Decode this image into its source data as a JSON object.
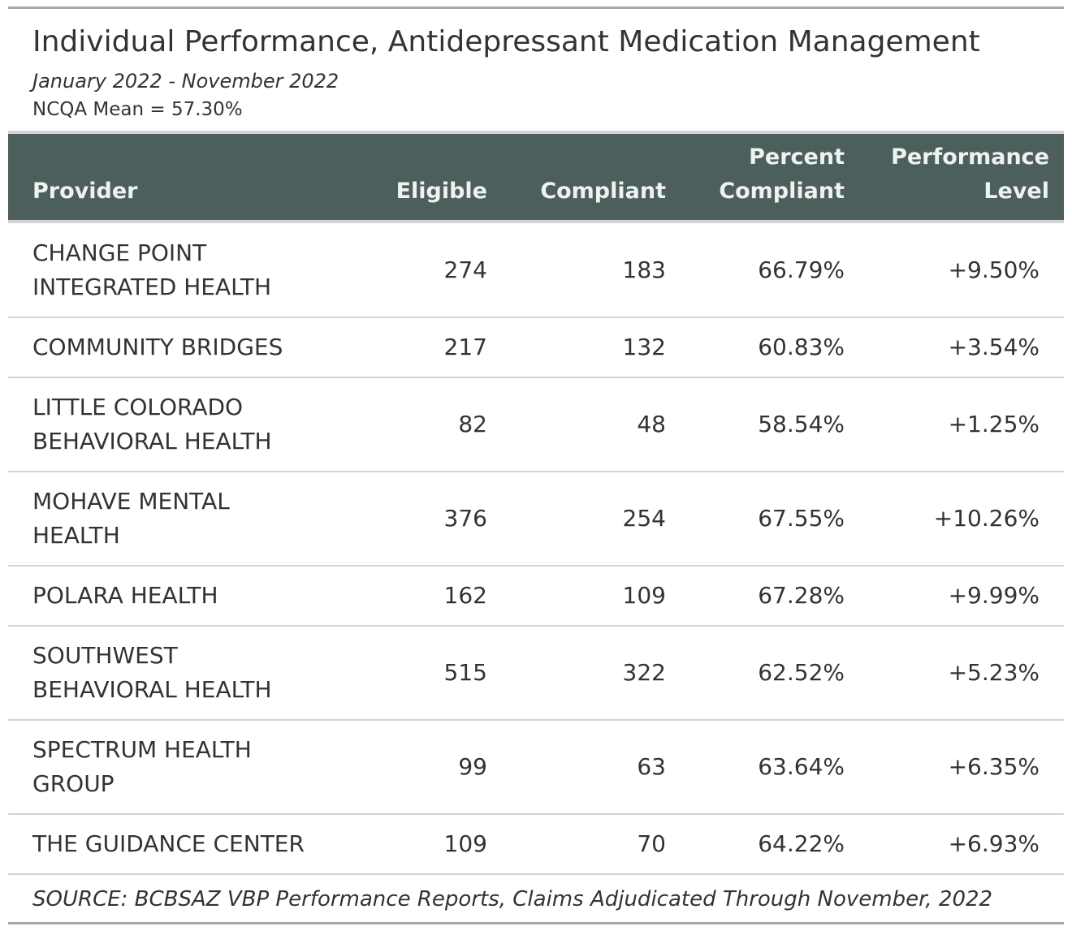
{
  "chart_data": {
    "type": "table",
    "title": "Individual Performance, Antidepressant Medication Management",
    "subtitle": "January 2022 - November 2022",
    "note": "NCQA Mean = 57.30%",
    "columns": {
      "provider": "Provider",
      "eligible": "Eligible",
      "compliant": "Compliant",
      "percent_line1": "Percent",
      "percent_line2": "Compliant",
      "performance_line1": "Performance",
      "performance_line2": "Level"
    },
    "rows": [
      {
        "provider_line1": "CHANGE POINT",
        "provider_line2": "INTEGRATED HEALTH",
        "eligible": "274",
        "compliant": "183",
        "percent": "66.79%",
        "performance": "+9.50%"
      },
      {
        "provider_line1": "COMMUNITY BRIDGES",
        "provider_line2": "",
        "eligible": "217",
        "compliant": "132",
        "percent": "60.83%",
        "performance": "+3.54%"
      },
      {
        "provider_line1": "LITTLE COLORADO",
        "provider_line2": "BEHAVIORAL HEALTH",
        "eligible": "82",
        "compliant": "48",
        "percent": "58.54%",
        "performance": "+1.25%"
      },
      {
        "provider_line1": "MOHAVE MENTAL",
        "provider_line2": "HEALTH",
        "eligible": "376",
        "compliant": "254",
        "percent": "67.55%",
        "performance": "+10.26%"
      },
      {
        "provider_line1": "POLARA HEALTH",
        "provider_line2": "",
        "eligible": "162",
        "compliant": "109",
        "percent": "67.28%",
        "performance": "+9.99%"
      },
      {
        "provider_line1": "SOUTHWEST",
        "provider_line2": "BEHAVIORAL HEALTH",
        "eligible": "515",
        "compliant": "322",
        "percent": "62.52%",
        "performance": "+5.23%"
      },
      {
        "provider_line1": "SPECTRUM HEALTH",
        "provider_line2": "GROUP",
        "eligible": "99",
        "compliant": "63",
        "percent": "63.64%",
        "performance": "+6.35%"
      },
      {
        "provider_line1": "THE GUIDANCE CENTER",
        "provider_line2": "",
        "eligible": "109",
        "compliant": "70",
        "percent": "64.22%",
        "performance": "+6.93%"
      }
    ],
    "source": "SOURCE: BCBSAZ VBP Performance Reports, Claims Adjudicated Through November, 2022",
    "colors": {
      "header_bg": "#4d5f5c",
      "header_text": "#eef3ef",
      "rule": "#d3d3d3",
      "outer_rule": "#a8a8a8",
      "text": "#333333"
    }
  }
}
